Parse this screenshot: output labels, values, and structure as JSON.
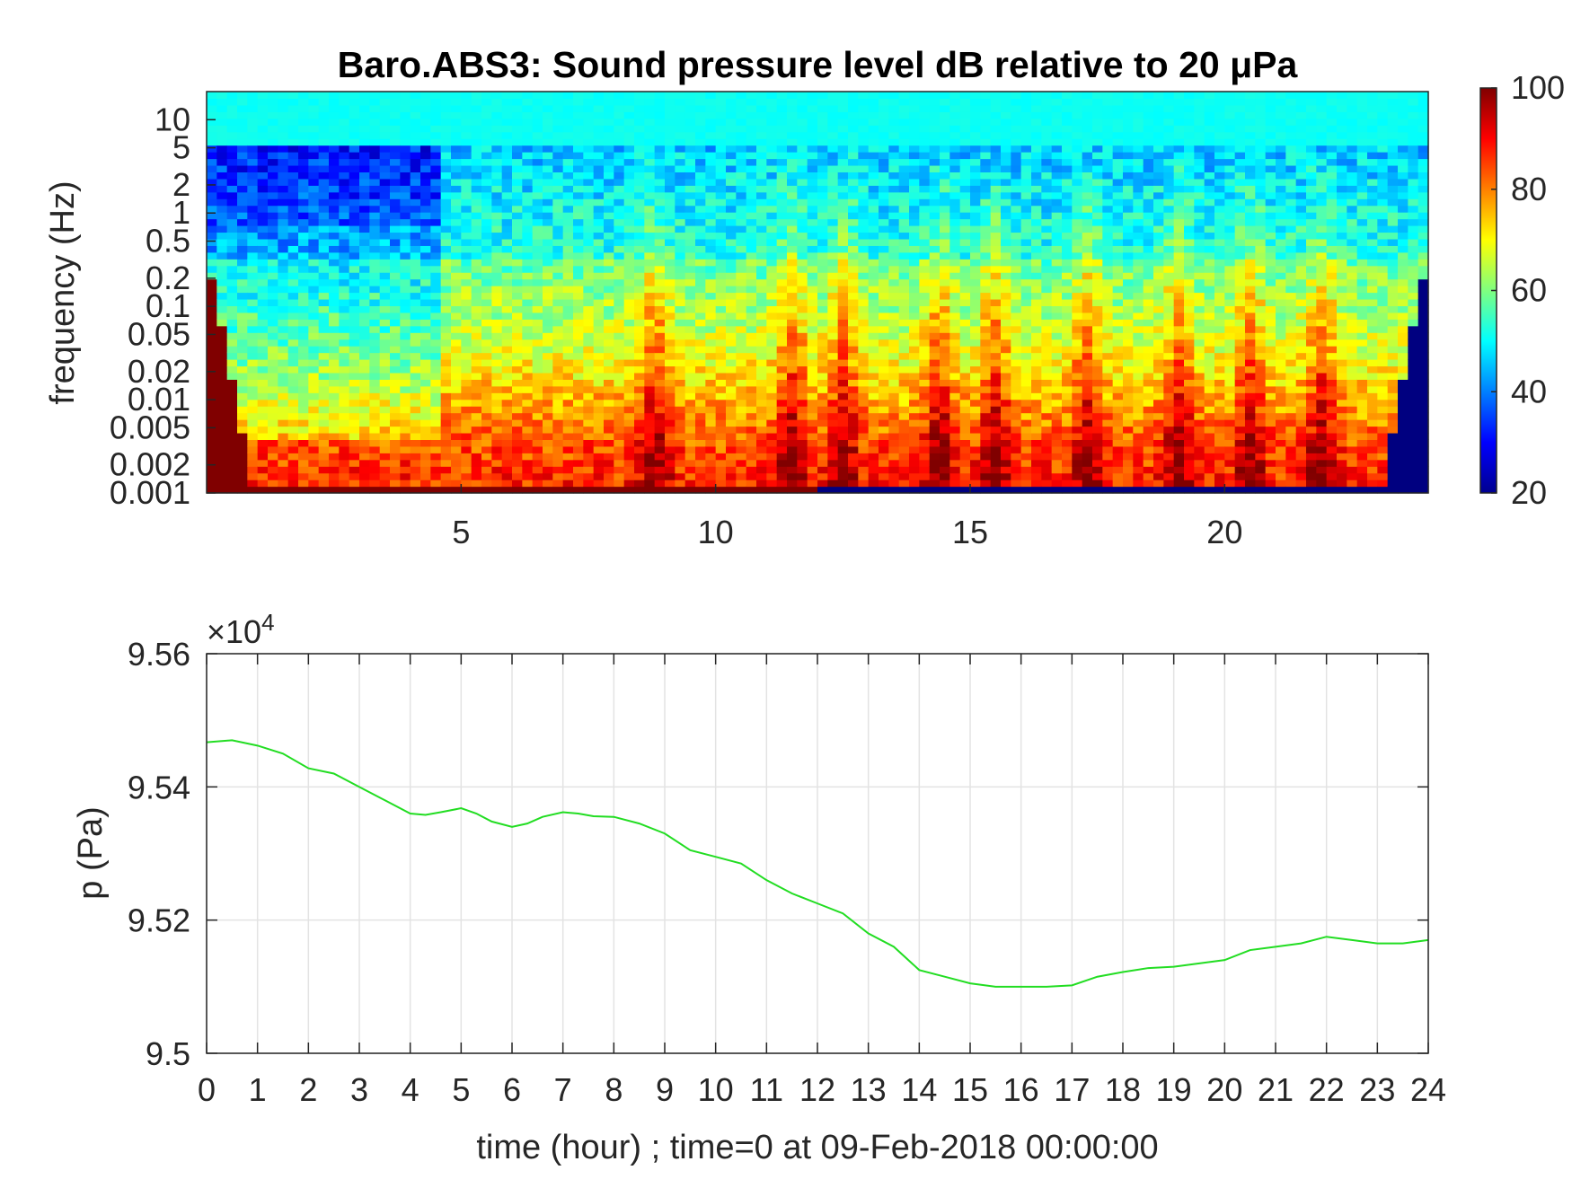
{
  "chart_data": [
    {
      "type": "heatmap",
      "title": "Baro.ABS3: Sound pressure level dB relative to 20 μPa",
      "ylabel": "frequency (Hz)",
      "xlabel": "",
      "yscale": "log",
      "xlim": [
        0,
        24
      ],
      "ylim": [
        0.001,
        20
      ],
      "xticks": [
        5,
        10,
        15,
        20
      ],
      "yticks": [
        0.001,
        0.002,
        0.005,
        0.01,
        0.02,
        0.05,
        0.1,
        0.2,
        0.5,
        1,
        2,
        5,
        10
      ],
      "ytick_labels": [
        "0.001",
        "0.002",
        "0.005",
        "0.01",
        "0.02",
        "0.05",
        "0.1",
        "0.2",
        "0.5",
        "1",
        "2",
        "5",
        "10"
      ],
      "colormap": "jet",
      "colorbar": {
        "min": 20,
        "max": 100,
        "ticks": [
          20,
          40,
          60,
          80,
          100
        ]
      },
      "grid": false
    },
    {
      "type": "line",
      "title": "",
      "xlabel": "time (hour) ; time=0 at 09-Feb-2018 00:00:00",
      "ylabel": "p (Pa)",
      "xlim": [
        0,
        24
      ],
      "ylim": [
        95000,
        95600
      ],
      "xticks": [
        0,
        1,
        2,
        3,
        4,
        5,
        6,
        7,
        8,
        9,
        10,
        11,
        12,
        13,
        14,
        15,
        16,
        17,
        18,
        19,
        20,
        21,
        22,
        23,
        24
      ],
      "yticks": [
        95000,
        95200,
        95400,
        95600
      ],
      "ytick_labels": [
        "9.5",
        "9.52",
        "9.54",
        "9.56"
      ],
      "y_exponent": "×10",
      "y_exponent_power": "4",
      "grid": true,
      "series": [
        {
          "color": "#22dd22",
          "x": [
            0,
            0.5,
            1,
            1.5,
            2,
            2.5,
            3,
            3.5,
            4,
            4.3,
            4.6,
            5,
            5.3,
            5.6,
            6,
            6.3,
            6.6,
            7,
            7.3,
            7.6,
            8,
            8.5,
            9,
            9.5,
            10,
            10.5,
            11,
            11.5,
            12,
            12.5,
            13,
            13.5,
            14,
            14.5,
            15,
            15.5,
            16,
            16.5,
            17,
            17.5,
            18,
            18.5,
            19,
            19.5,
            20,
            20.5,
            21,
            21.5,
            22,
            22.5,
            23,
            23.5,
            24
          ],
          "y": [
            95467,
            95470,
            95462,
            95450,
            95428,
            95420,
            95400,
            95380,
            95360,
            95358,
            95362,
            95368,
            95360,
            95348,
            95340,
            95345,
            95355,
            95362,
            95360,
            95356,
            95355,
            95345,
            95330,
            95305,
            95295,
            95285,
            95260,
            95240,
            95225,
            95210,
            95180,
            95160,
            95125,
            95115,
            95105,
            95100,
            95100,
            95100,
            95102,
            95115,
            95122,
            95128,
            95130,
            95135,
            95140,
            95155,
            95160,
            95165,
            95175,
            95170,
            95165,
            95165,
            95170
          ]
        }
      ]
    }
  ]
}
